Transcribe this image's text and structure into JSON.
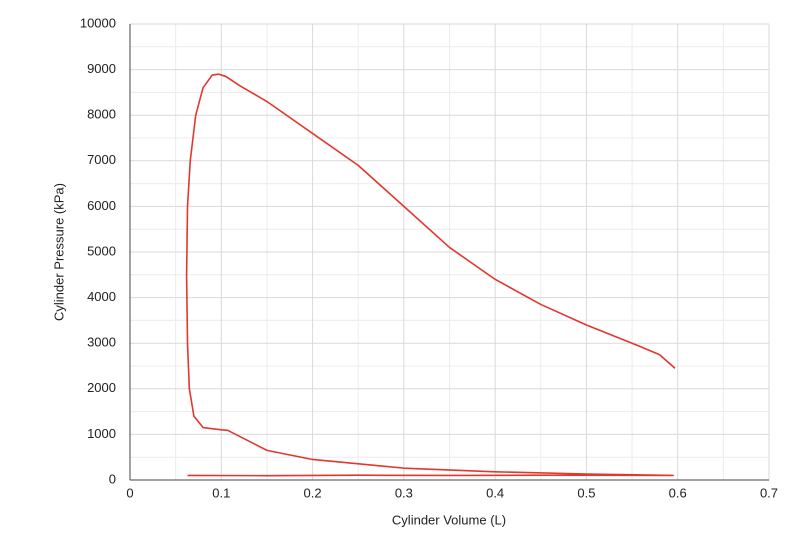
{
  "chart_data": {
    "type": "line",
    "x_label": "Cylinder Volume (L)",
    "y_label": "Cylinder Pressure (kPa)",
    "xlim": [
      0,
      0.7
    ],
    "xticks": [
      0,
      0.1,
      0.2,
      0.3,
      0.4,
      0.5,
      0.6,
      0.7
    ],
    "xminorticks": [
      0.05,
      0.15,
      0.25,
      0.35,
      0.45,
      0.55,
      0.65
    ],
    "ylim": [
      0,
      10000
    ],
    "yticks": [
      0,
      1000,
      2000,
      3000,
      4000,
      5000,
      6000,
      7000,
      8000,
      9000,
      10000
    ],
    "yminorticks": [
      500,
      1500,
      2500,
      3500,
      4500,
      5500,
      6500,
      7500,
      8500,
      9500
    ],
    "grid": true,
    "series": [
      {
        "color": "#e2372f",
        "x": [
          0.063,
          0.15,
          0.25,
          0.35,
          0.45,
          0.595,
          0.5,
          0.4,
          0.3,
          0.2,
          0.15,
          0.107,
          0.1,
          0.08,
          0.07,
          0.065,
          0.063,
          0.062,
          0.063,
          0.066,
          0.072,
          0.08,
          0.09,
          0.097,
          0.105,
          0.12,
          0.15,
          0.2,
          0.25,
          0.3,
          0.35,
          0.4,
          0.45,
          0.5,
          0.55,
          0.58,
          0.597
        ],
        "values": [
          100,
          95,
          105,
          100,
          105,
          100,
          130,
          180,
          260,
          450,
          650,
          1090,
          1100,
          1150,
          1400,
          2000,
          3000,
          4500,
          6000,
          7000,
          8000,
          8600,
          8880,
          8900,
          8850,
          8650,
          8300,
          7600,
          6900,
          6000,
          5100,
          4400,
          3850,
          3400,
          3000,
          2750,
          2450
        ]
      }
    ]
  }
}
